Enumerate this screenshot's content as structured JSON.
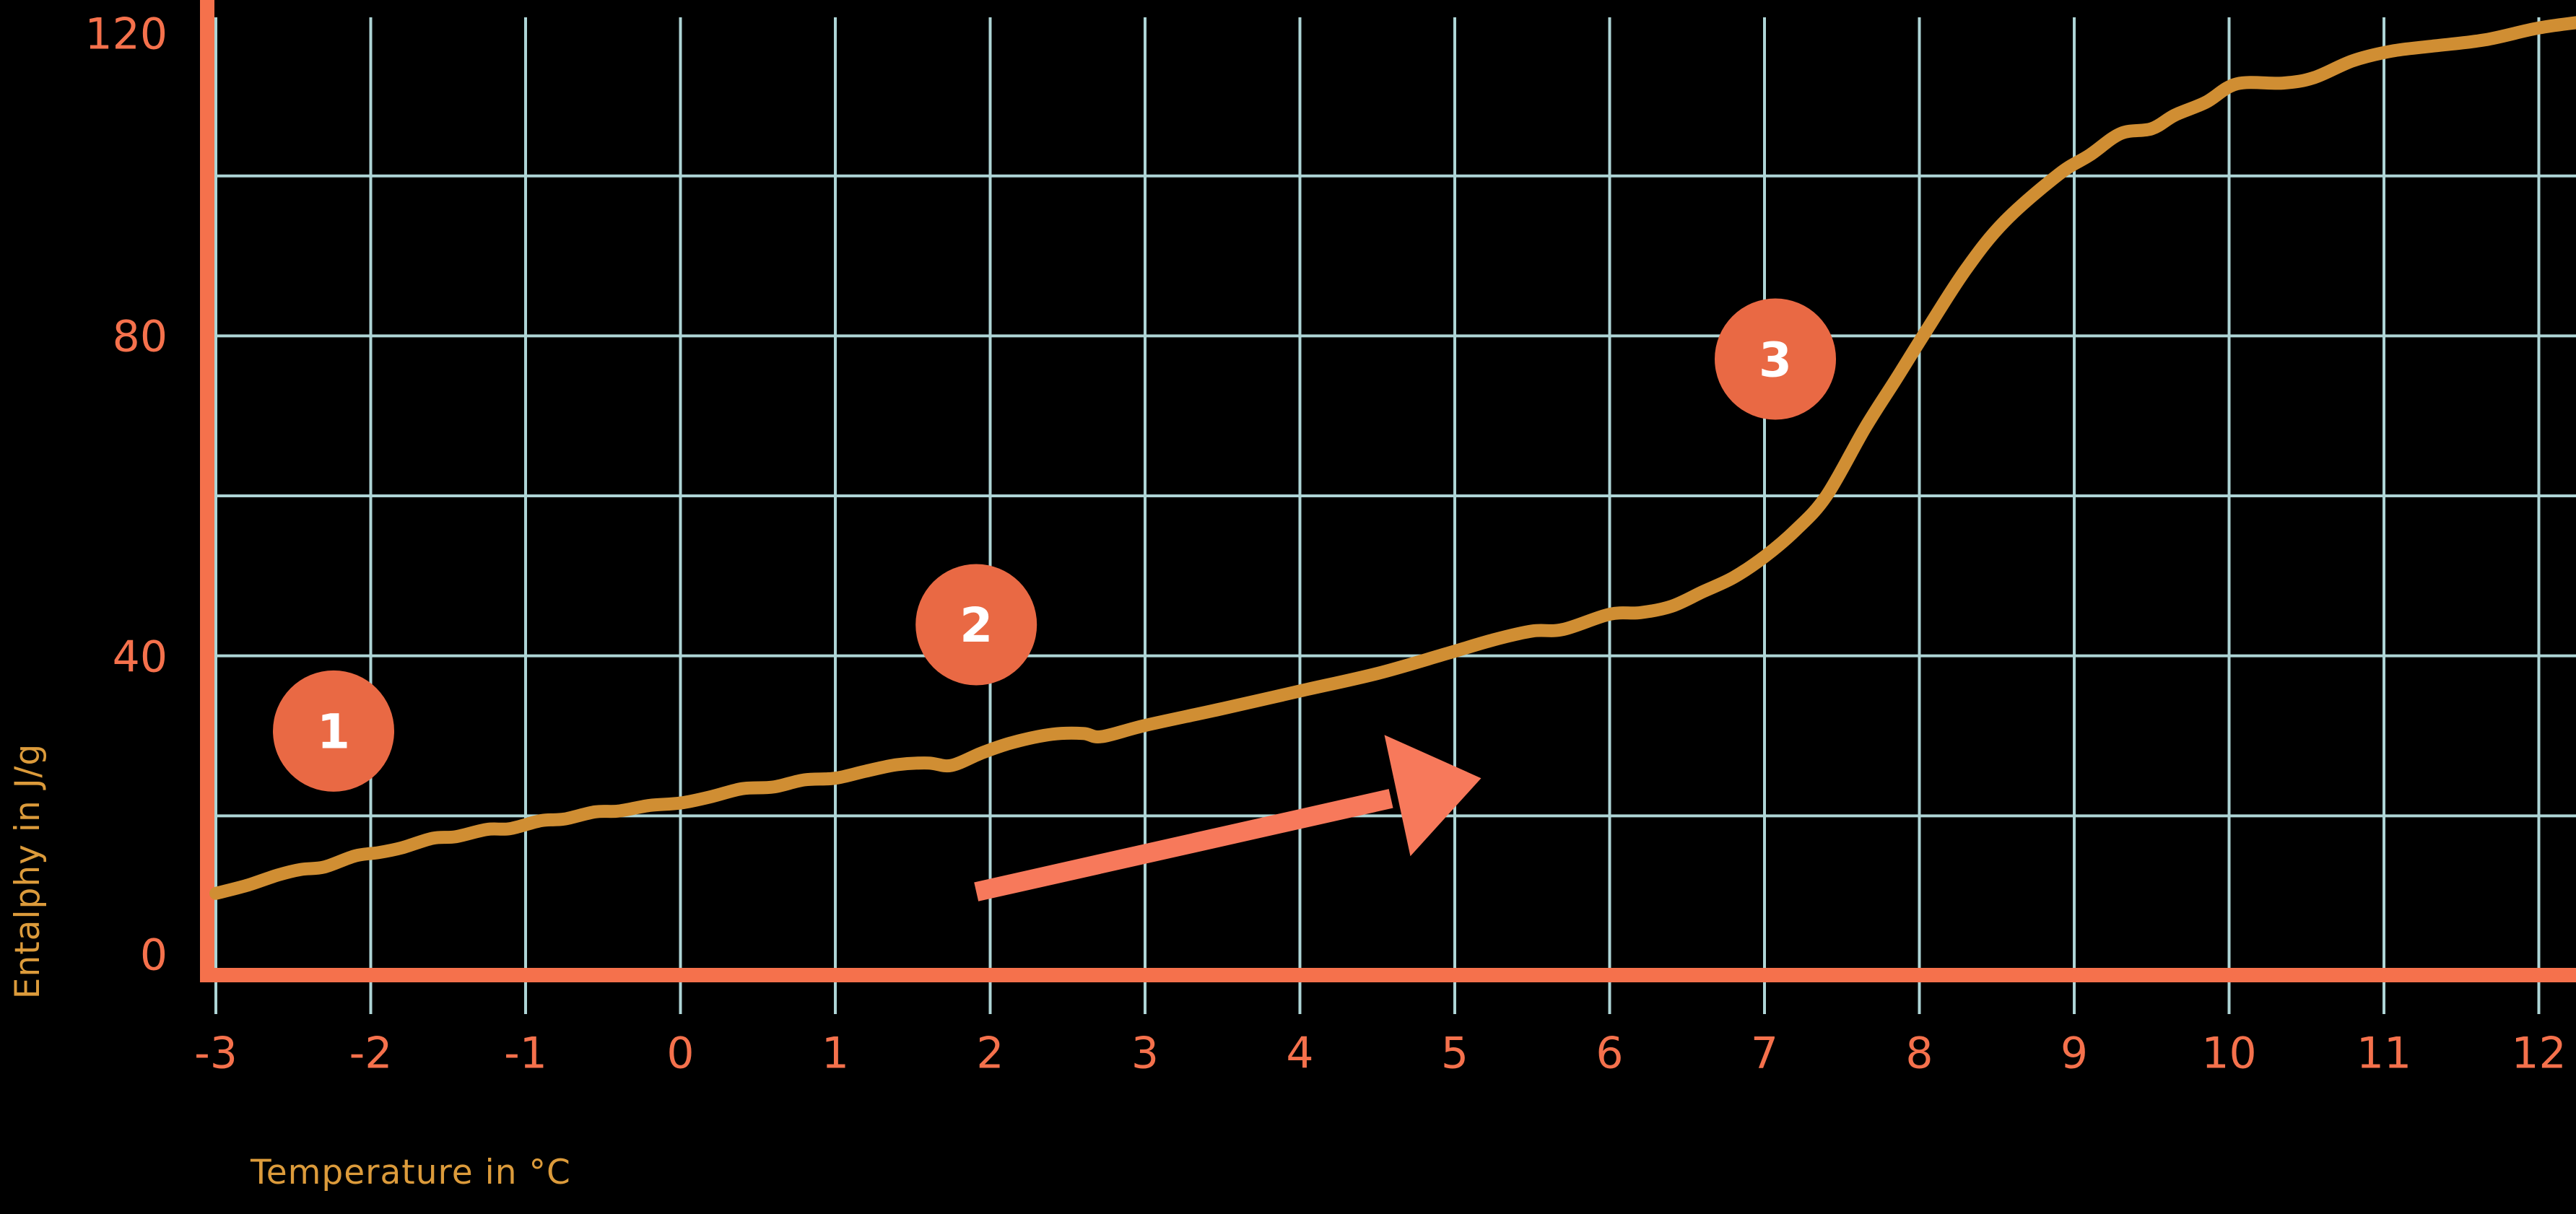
{
  "page": {
    "background": "#000000"
  },
  "chart_data": {
    "type": "line",
    "title": "",
    "xlabel": "Temperature in °C",
    "ylabel": "Entalphy in J/g",
    "xlim": [
      -3,
      12
    ],
    "ylim": [
      0,
      120
    ],
    "x_tick_labels": [
      "-3",
      "-2",
      "-1",
      "0",
      "1",
      "2",
      "3",
      "4",
      "5",
      "6",
      "7",
      "8",
      "9",
      "10",
      "11",
      "12"
    ],
    "x_tick_values": [
      -3,
      -2,
      -1,
      0,
      1,
      2,
      3,
      4,
      5,
      6,
      7,
      8,
      9,
      10,
      11,
      12
    ],
    "y_tick_labels": [
      "0",
      "40",
      "80",
      "120"
    ],
    "y_tick_values": [
      0,
      40,
      80,
      120
    ],
    "x_grid_every": 1,
    "y_grid_values": [
      20,
      40,
      60,
      80,
      100
    ],
    "grid": true,
    "legend": "none",
    "series": [
      {
        "name": "enthalpy-curve",
        "x": [
          -3.0,
          -2.8,
          -2.6,
          -2.45,
          -2.3,
          -2.1,
          -1.95,
          -1.8,
          -1.6,
          -1.45,
          -1.25,
          -1.1,
          -0.9,
          -0.75,
          -0.55,
          -0.4,
          -0.2,
          0.0,
          0.2,
          0.4,
          0.6,
          0.8,
          1.0,
          1.2,
          1.4,
          1.6,
          1.75,
          1.95,
          2.15,
          2.4,
          2.6,
          2.72,
          3.0,
          3.5,
          4.0,
          4.5,
          4.95,
          5.25,
          5.5,
          5.7,
          6.0,
          6.2,
          6.4,
          6.6,
          6.8,
          7.0,
          7.2,
          7.4,
          7.65,
          7.85,
          8.05,
          8.3,
          8.55,
          8.9,
          9.1,
          9.3,
          9.5,
          9.65,
          9.85,
          10.05,
          10.35,
          10.55,
          10.8,
          11.05,
          11.3,
          11.65,
          12.0,
          12.3
        ],
        "y": [
          10.3,
          11.3,
          12.6,
          13.3,
          13.6,
          15.0,
          15.4,
          16.0,
          17.2,
          17.4,
          18.3,
          18.4,
          19.4,
          19.6,
          20.5,
          20.6,
          21.3,
          21.6,
          22.4,
          23.4,
          23.6,
          24.5,
          24.7,
          25.6,
          26.4,
          26.6,
          26.3,
          27.9,
          29.2,
          30.2,
          30.3,
          29.9,
          31.3,
          33.4,
          35.6,
          37.8,
          40.3,
          42.0,
          43.1,
          43.3,
          45.2,
          45.4,
          46.2,
          48.0,
          49.8,
          52.4,
          55.7,
          60.0,
          68.5,
          74.6,
          80.8,
          88.3,
          94.3,
          100.2,
          102.6,
          105.3,
          105.9,
          107.6,
          109.2,
          111.5,
          111.6,
          112.3,
          114.4,
          115.6,
          116.2,
          117.0,
          118.5,
          119.3
        ]
      }
    ],
    "annotations": {
      "markers": [
        {
          "label": "1",
          "x": -2.24,
          "y": 30.6
        },
        {
          "label": "2",
          "x": 1.91,
          "y": 43.9
        },
        {
          "label": "3",
          "x": 7.07,
          "y": 77.1
        }
      ],
      "arrow": {
        "from": [
          1.91,
          10.5
        ],
        "to": [
          5.17,
          24.7
        ]
      }
    },
    "colors": {
      "background": "#000000",
      "axis": "#F5714C",
      "tick_label": "#F5714C",
      "gridline": "#AED5D6",
      "curve": "#D08E33",
      "axis_title": "#DC9B3B",
      "marker_fill": "#E96944",
      "marker_text": "#FFFFFF",
      "arrow": "#F7795B"
    }
  }
}
